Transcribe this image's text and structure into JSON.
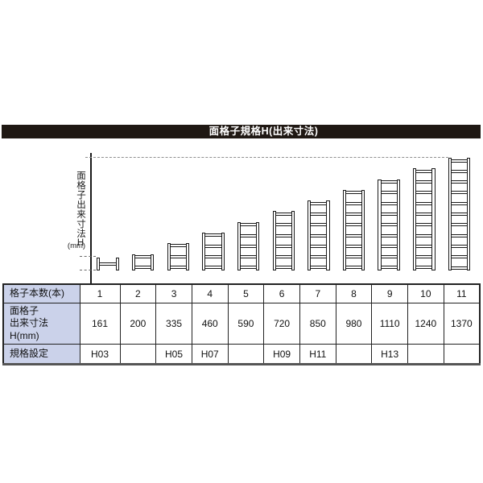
{
  "title_bar": {
    "text": "面格子規格H(出来寸法)"
  },
  "diagram": {
    "y_axis_label": "面格子出来寸法H",
    "y_axis_unit": "(mm)"
  },
  "chart_data": {
    "type": "bar",
    "title": "面格子規格H(出来寸法)",
    "xlabel": "格子本数(本)",
    "ylabel": "面格子出来寸法H (mm)",
    "categories": [
      1,
      2,
      3,
      4,
      5,
      6,
      7,
      8,
      9,
      10,
      11
    ],
    "values": [
      161,
      200,
      335,
      460,
      590,
      720,
      850,
      980,
      1110,
      1240,
      1370
    ],
    "ylim": [
      0,
      1370
    ],
    "grid": false,
    "legend_position": "none",
    "pictogram": "lattice ladder with N horizontal bars per category"
  },
  "table": {
    "row_headers": [
      [
        "格子本数(本)"
      ],
      [
        "面格子",
        "出来寸法H(mm)"
      ],
      [
        "規格設定"
      ]
    ],
    "rows": [
      [
        "1",
        "2",
        "3",
        "4",
        "5",
        "6",
        "7",
        "8",
        "9",
        "10",
        "11"
      ],
      [
        "161",
        "200",
        "335",
        "460",
        "590",
        "720",
        "850",
        "980",
        "1110",
        "1240",
        "1370"
      ],
      [
        "H03",
        "",
        "H05",
        "H07",
        "",
        "H09",
        "H11",
        "",
        "H13",
        "",
        ""
      ]
    ]
  },
  "colors": {
    "title_bar_bg": "#1f1813",
    "title_bar_text": "#ffffff",
    "table_header_bg": "#cbd2ea",
    "table_border": "#222222",
    "line_black": "#1a1a1a",
    "dashed_gray": "#8f8f8f"
  }
}
